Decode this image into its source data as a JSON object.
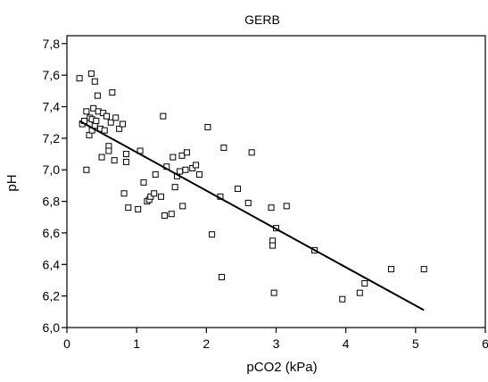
{
  "chart_data": {
    "type": "scatter",
    "title": "GERB",
    "xlabel": "pCO2 (kPa)",
    "ylabel": "pH",
    "xlim": [
      0,
      6
    ],
    "ylim": [
      6.0,
      7.85
    ],
    "grid": false,
    "x_ticks": [
      0,
      1,
      2,
      3,
      4,
      5,
      6
    ],
    "x_tick_labels": [
      "0",
      "1",
      "2",
      "3",
      "4",
      "5",
      "6"
    ],
    "y_ticks": [
      6.0,
      6.2,
      6.4,
      6.6,
      6.8,
      7.0,
      7.2,
      7.4,
      7.6,
      7.8
    ],
    "y_tick_labels": [
      "6,0",
      "6,2",
      "6,4",
      "6,6",
      "6,8",
      "7,0",
      "7,2",
      "7,4",
      "7,6",
      "7,8"
    ],
    "series": [
      {
        "marker": "open-square",
        "points": [
          [
            0.18,
            7.58
          ],
          [
            0.22,
            7.29
          ],
          [
            0.25,
            7.31
          ],
          [
            0.28,
            7.37
          ],
          [
            0.28,
            7.0
          ],
          [
            0.32,
            7.22
          ],
          [
            0.33,
            7.33
          ],
          [
            0.35,
            7.61
          ],
          [
            0.36,
            7.32
          ],
          [
            0.36,
            7.25
          ],
          [
            0.38,
            7.39
          ],
          [
            0.4,
            7.56
          ],
          [
            0.4,
            7.28
          ],
          [
            0.42,
            7.31
          ],
          [
            0.44,
            7.47
          ],
          [
            0.45,
            7.37
          ],
          [
            0.48,
            7.26
          ],
          [
            0.5,
            7.08
          ],
          [
            0.52,
            7.36
          ],
          [
            0.54,
            7.25
          ],
          [
            0.57,
            7.34
          ],
          [
            0.6,
            7.15
          ],
          [
            0.6,
            7.12
          ],
          [
            0.63,
            7.3
          ],
          [
            0.65,
            7.49
          ],
          [
            0.68,
            7.06
          ],
          [
            0.7,
            7.33
          ],
          [
            0.75,
            7.26
          ],
          [
            0.8,
            7.29
          ],
          [
            0.82,
            6.85
          ],
          [
            0.85,
            7.05
          ],
          [
            0.85,
            7.1
          ],
          [
            0.88,
            6.76
          ],
          [
            1.02,
            6.75
          ],
          [
            1.05,
            7.12
          ],
          [
            1.1,
            6.92
          ],
          [
            1.15,
            6.8
          ],
          [
            1.18,
            6.81
          ],
          [
            1.2,
            6.83
          ],
          [
            1.25,
            6.85
          ],
          [
            1.27,
            6.97
          ],
          [
            1.35,
            6.83
          ],
          [
            1.38,
            7.34
          ],
          [
            1.4,
            6.71
          ],
          [
            1.43,
            7.02
          ],
          [
            1.5,
            6.72
          ],
          [
            1.52,
            7.08
          ],
          [
            1.55,
            6.89
          ],
          [
            1.58,
            6.96
          ],
          [
            1.62,
            6.99
          ],
          [
            1.65,
            7.09
          ],
          [
            1.66,
            6.77
          ],
          [
            1.7,
            7.0
          ],
          [
            1.72,
            7.11
          ],
          [
            1.8,
            7.01
          ],
          [
            1.85,
            7.03
          ],
          [
            1.9,
            6.97
          ],
          [
            2.02,
            7.27
          ],
          [
            2.08,
            6.59
          ],
          [
            2.2,
            6.83
          ],
          [
            2.22,
            6.32
          ],
          [
            2.25,
            7.14
          ],
          [
            2.45,
            6.88
          ],
          [
            2.6,
            6.79
          ],
          [
            2.65,
            7.11
          ],
          [
            2.93,
            6.76
          ],
          [
            2.95,
            6.55
          ],
          [
            2.95,
            6.52
          ],
          [
            2.97,
            6.22
          ],
          [
            3.0,
            6.63
          ],
          [
            3.15,
            6.77
          ],
          [
            3.55,
            6.49
          ],
          [
            3.95,
            6.18
          ],
          [
            4.2,
            6.22
          ],
          [
            4.27,
            6.28
          ],
          [
            4.65,
            6.37
          ],
          [
            5.12,
            6.37
          ]
        ]
      }
    ],
    "fit_line": {
      "from": [
        0.18,
        7.31
      ],
      "to": [
        5.12,
        6.11
      ]
    }
  }
}
